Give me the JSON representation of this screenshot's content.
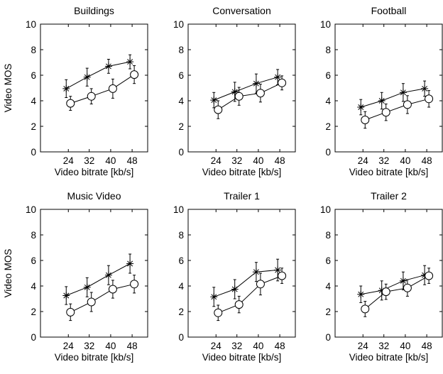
{
  "figure": {
    "ylabel": "Video MOS"
  },
  "chart_data": [
    {
      "type": "line",
      "title": "Buildings",
      "xlabel": "Video bitrate [kb/s]",
      "ylabel": "Video MOS",
      "categories": [
        "24",
        "32",
        "40",
        "48"
      ],
      "ylim": [
        0,
        10
      ],
      "yticks": [
        "0",
        "2",
        "4",
        "6",
        "8",
        "10"
      ],
      "series": [
        {
          "marker": "star",
          "values": [
            4.95,
            5.85,
            6.7,
            7.05
          ],
          "err": [
            0.7,
            0.7,
            0.55,
            0.55
          ]
        },
        {
          "marker": "circle",
          "values": [
            3.8,
            4.35,
            4.95,
            6.05
          ],
          "err": [
            0.55,
            0.6,
            0.75,
            0.7
          ]
        }
      ]
    },
    {
      "type": "line",
      "title": "Conversation",
      "xlabel": "Video bitrate [kb/s]",
      "ylabel": "",
      "categories": [
        "24",
        "32",
        "40",
        "48"
      ],
      "ylim": [
        0,
        10
      ],
      "yticks": [
        "0",
        "2",
        "4",
        "6",
        "8",
        "10"
      ],
      "series": [
        {
          "marker": "star",
          "values": [
            4.05,
            4.7,
            5.35,
            5.85
          ],
          "err": [
            0.6,
            0.75,
            0.75,
            0.6
          ]
        },
        {
          "marker": "circle",
          "values": [
            3.3,
            4.35,
            4.6,
            5.4
          ],
          "err": [
            0.7,
            0.7,
            0.7,
            0.55
          ]
        }
      ]
    },
    {
      "type": "line",
      "title": "Football",
      "xlabel": "Video bitrate [kb/s]",
      "ylabel": "",
      "categories": [
        "24",
        "32",
        "40",
        "48"
      ],
      "ylim": [
        0,
        10
      ],
      "yticks": [
        "0",
        "2",
        "4",
        "6",
        "8",
        "10"
      ],
      "series": [
        {
          "marker": "star",
          "values": [
            3.5,
            4.0,
            4.65,
            4.95
          ],
          "err": [
            0.6,
            0.65,
            0.7,
            0.6
          ]
        },
        {
          "marker": "circle",
          "values": [
            2.5,
            3.1,
            3.7,
            4.15
          ],
          "err": [
            0.65,
            0.65,
            0.7,
            0.65
          ]
        }
      ]
    },
    {
      "type": "line",
      "title": "Music Video",
      "xlabel": "Video bitrate [kb/s]",
      "ylabel": "Video MOS",
      "categories": [
        "24",
        "32",
        "40",
        "48"
      ],
      "ylim": [
        0,
        10
      ],
      "yticks": [
        "0",
        "2",
        "4",
        "6",
        "8",
        "10"
      ],
      "series": [
        {
          "marker": "star",
          "values": [
            3.25,
            3.9,
            4.85,
            5.75
          ],
          "err": [
            0.7,
            0.75,
            0.75,
            0.75
          ]
        },
        {
          "marker": "circle",
          "values": [
            1.95,
            2.75,
            3.75,
            4.15
          ],
          "err": [
            0.65,
            0.75,
            0.7,
            0.7
          ]
        }
      ]
    },
    {
      "type": "line",
      "title": "Trailer 1",
      "xlabel": "Video bitrate [kb/s]",
      "ylabel": "",
      "categories": [
        "24",
        "32",
        "40",
        "48"
      ],
      "ylim": [
        0,
        10
      ],
      "yticks": [
        "0",
        "2",
        "4",
        "6",
        "8",
        "10"
      ],
      "series": [
        {
          "marker": "star",
          "values": [
            3.15,
            3.75,
            5.1,
            5.25
          ],
          "err": [
            0.75,
            0.75,
            0.75,
            0.85
          ]
        },
        {
          "marker": "circle",
          "values": [
            1.9,
            2.55,
            4.15,
            4.8
          ],
          "err": [
            0.6,
            0.65,
            0.85,
            0.6
          ]
        }
      ]
    },
    {
      "type": "line",
      "title": "Trailer 2",
      "xlabel": "Video bitrate [kb/s]",
      "ylabel": "",
      "categories": [
        "24",
        "32",
        "40",
        "48"
      ],
      "ylim": [
        0,
        10
      ],
      "yticks": [
        "0",
        "2",
        "4",
        "6",
        "8",
        "10"
      ],
      "series": [
        {
          "marker": "star",
          "values": [
            3.35,
            3.65,
            4.4,
            4.85
          ],
          "err": [
            0.65,
            0.75,
            0.7,
            0.75
          ]
        },
        {
          "marker": "circle",
          "values": [
            2.2,
            3.55,
            3.85,
            4.8
          ],
          "err": [
            0.6,
            0.6,
            0.65,
            0.6
          ]
        }
      ]
    }
  ]
}
